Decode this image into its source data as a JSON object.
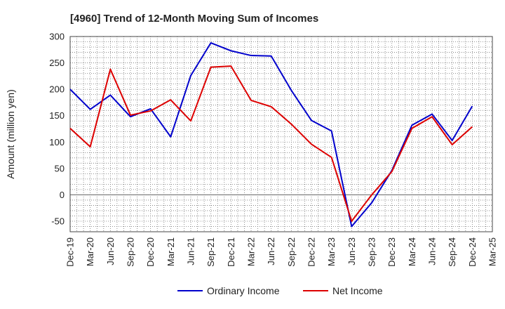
{
  "chart_data": {
    "type": "line",
    "title": "[4960]  Trend of 12-Month Moving Sum of Incomes",
    "xlabel": "",
    "ylabel": "Amount (million yen)",
    "ylim": [
      -70,
      300
    ],
    "yticks": [
      -50,
      0,
      50,
      100,
      150,
      200,
      250,
      300
    ],
    "categories": [
      "Dec-19",
      "Mar-20",
      "Jun-20",
      "Sep-20",
      "Dec-20",
      "Mar-21",
      "Jun-21",
      "Sep-21",
      "Dec-21",
      "Mar-22",
      "Jun-22",
      "Sep-22",
      "Dec-22",
      "Mar-23",
      "Jun-23",
      "Sep-23",
      "Dec-23",
      "Mar-24",
      "Jun-24",
      "Sep-24",
      "Dec-24",
      "Mar-25"
    ],
    "grid": true,
    "legend_position": "bottom",
    "series": [
      {
        "name": "Ordinary Income",
        "color": "#0000cc",
        "values": [
          200,
          162,
          189,
          148,
          163,
          110,
          226,
          288,
          273,
          264,
          263,
          198,
          141,
          121,
          -60,
          -15,
          46,
          132,
          153,
          103,
          168,
          null
        ]
      },
      {
        "name": "Net Income",
        "color": "#dd0000",
        "values": [
          126,
          91,
          238,
          151,
          159,
          180,
          140,
          242,
          244,
          179,
          167,
          134,
          96,
          71,
          -50,
          0,
          44,
          126,
          148,
          95,
          129,
          null
        ]
      }
    ]
  }
}
